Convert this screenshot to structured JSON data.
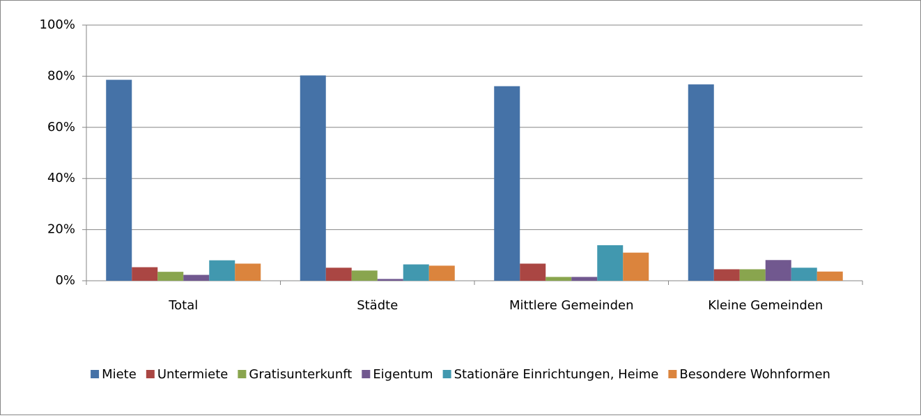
{
  "chart_data": {
    "type": "bar",
    "categories": [
      "Total",
      "Städte",
      "Mittlere Gemeinden",
      "Kleine Gemeinden"
    ],
    "series": [
      {
        "name": "Miete",
        "color": "#4572a7",
        "values": [
          78.6,
          80.3,
          76.1,
          76.8
        ]
      },
      {
        "name": "Untermiete",
        "color": "#aa4643",
        "values": [
          5.3,
          5.1,
          6.7,
          4.5
        ]
      },
      {
        "name": "Gratisunterkunft",
        "color": "#89a54e",
        "values": [
          3.5,
          4.0,
          1.5,
          4.5
        ]
      },
      {
        "name": "Eigentum",
        "color": "#71588f",
        "values": [
          2.3,
          0.7,
          1.5,
          8.1
        ]
      },
      {
        "name": "Stationäre Einrichtungen, Heime",
        "color": "#4198af",
        "values": [
          8.0,
          6.4,
          13.9,
          5.1
        ]
      },
      {
        "name": "Besondere Wohnformen",
        "color": "#db843d",
        "values": [
          6.7,
          5.9,
          11.0,
          3.6
        ]
      }
    ],
    "ylim": [
      0,
      100
    ],
    "yticks": [
      {
        "value": 0,
        "label": "0%"
      },
      {
        "value": 20,
        "label": "20%"
      },
      {
        "value": 40,
        "label": "40%"
      },
      {
        "value": 60,
        "label": "60%"
      },
      {
        "value": 80,
        "label": "80%"
      },
      {
        "value": 100,
        "label": "100%"
      }
    ],
    "grid": true,
    "legend": "bottom"
  }
}
